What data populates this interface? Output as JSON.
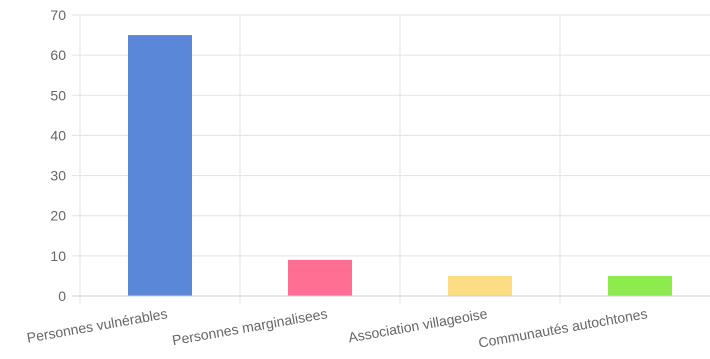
{
  "chart_data": {
    "type": "bar",
    "categories": [
      "Personnes vulnérables",
      "Personnes marginalisees",
      "Association villageoise",
      "Communautés autochtones"
    ],
    "values": [
      65,
      9,
      5,
      5
    ],
    "colors": [
      "#5b87d8",
      "#ff6f94",
      "#fddc86",
      "#8eeb4d"
    ],
    "ylim": [
      0,
      70
    ],
    "yticks": [
      0,
      10,
      20,
      30,
      40,
      50,
      60,
      70
    ],
    "grid": true,
    "title": "",
    "xlabel": "",
    "ylabel": ""
  }
}
